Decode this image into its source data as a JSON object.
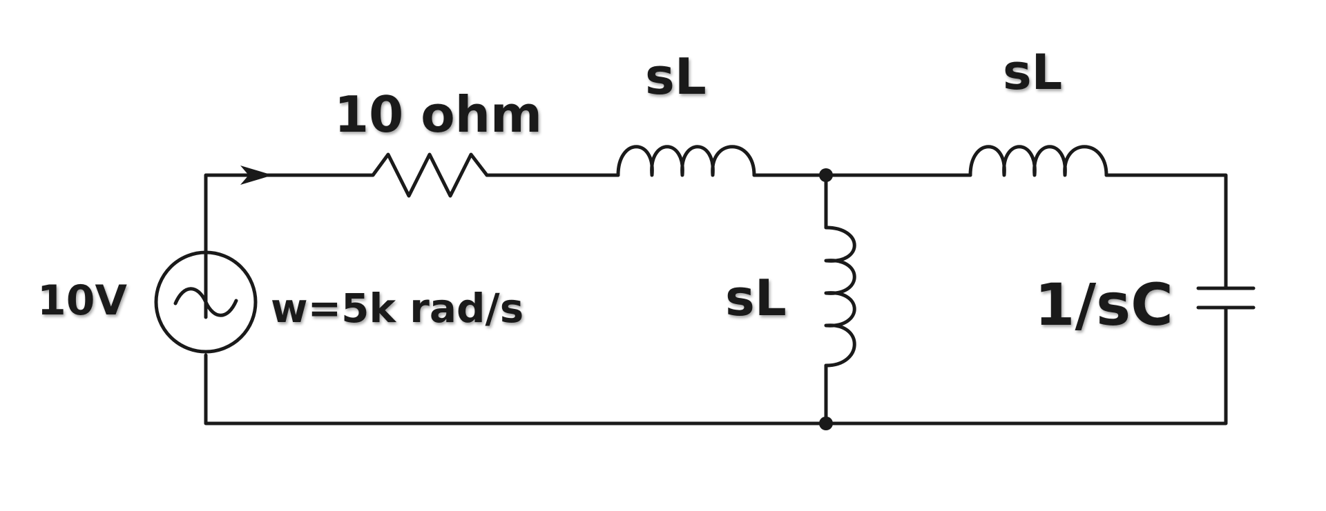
{
  "labels": {
    "resistor": "10 ohm",
    "series_inductor_1": "sL",
    "series_inductor_2": "sL",
    "shunt_inductor": "sL",
    "capacitor": "1/sC",
    "source_voltage": "10V",
    "source_frequency": "w=5k rad/s"
  },
  "icons": {
    "source": "ac-voltage-source-icon",
    "current_arrow": "arrow-right-icon"
  },
  "colors": {
    "ink": "#1a1a1a",
    "background": "#ffffff"
  }
}
